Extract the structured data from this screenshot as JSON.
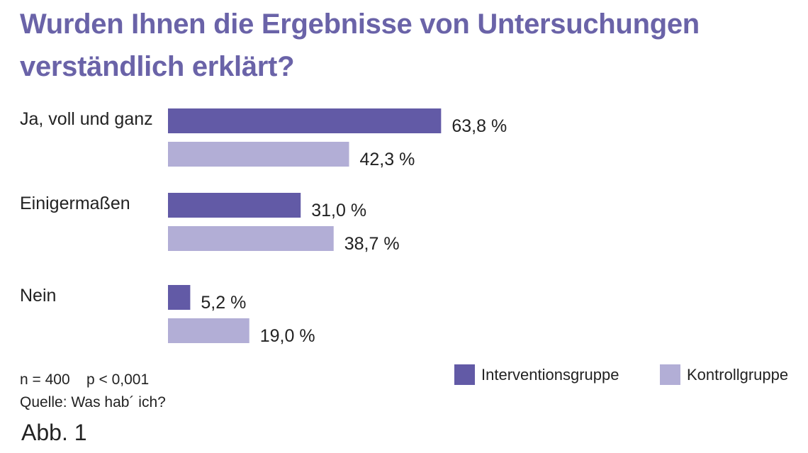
{
  "title": "Wurden Ihnen die Ergebnisse von Untersuchungen verständlich erklärt?",
  "colors": {
    "intervention": "#625aa6",
    "control": "#b2aed6",
    "title": "#6a63a8"
  },
  "chart_data": {
    "type": "bar",
    "orientation": "horizontal",
    "title": "Wurden Ihnen die Ergebnisse von Untersuchungen verständlich erklärt?",
    "categories": [
      "Ja, voll und ganz",
      "Einigermaßen",
      "Nein"
    ],
    "series": [
      {
        "name": "Interventionsgruppe",
        "values": [
          63.8,
          31.0,
          5.2
        ],
        "labels": [
          "63,8 %",
          "31,0 %",
          "5,2 %"
        ]
      },
      {
        "name": "Kontrollgruppe",
        "values": [
          42.3,
          38.7,
          19.0
        ],
        "labels": [
          "42,3 %",
          "38,7 %",
          "19,0 %"
        ]
      }
    ],
    "xlim": [
      0,
      100
    ],
    "unit": "%",
    "legend_position": "bottom-right",
    "grid": false
  },
  "footer": {
    "stats": "n = 400    p < 0,001",
    "source": "Quelle: Was hab´ ich?",
    "figure_label": "Abb. 1"
  }
}
